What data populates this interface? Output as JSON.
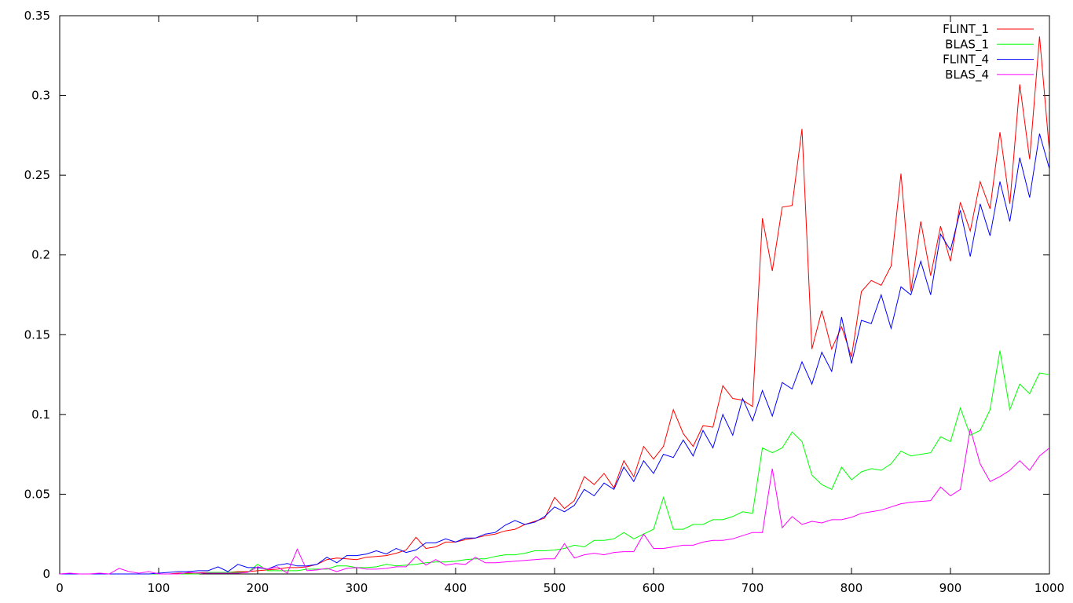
{
  "chart_data": {
    "type": "line",
    "title": "",
    "xlabel": "",
    "ylabel": "",
    "xlim": [
      0,
      1000
    ],
    "ylim": [
      0,
      0.35
    ],
    "xticks": [
      {
        "value": 0,
        "label": "0"
      },
      {
        "value": 100,
        "label": "100"
      },
      {
        "value": 200,
        "label": "200"
      },
      {
        "value": 300,
        "label": "300"
      },
      {
        "value": 400,
        "label": "400"
      },
      {
        "value": 500,
        "label": "500"
      },
      {
        "value": 600,
        "label": "600"
      },
      {
        "value": 700,
        "label": "700"
      },
      {
        "value": 800,
        "label": "800"
      },
      {
        "value": 900,
        "label": "900"
      },
      {
        "value": 1000,
        "label": "1000"
      }
    ],
    "yticks": [
      {
        "value": 0,
        "label": "0"
      },
      {
        "value": 0.05,
        "label": "0.05"
      },
      {
        "value": 0.1,
        "label": "0.1"
      },
      {
        "value": 0.15,
        "label": "0.15"
      },
      {
        "value": 0.2,
        "label": "0.2"
      },
      {
        "value": 0.25,
        "label": "0.25"
      },
      {
        "value": 0.3,
        "label": "0.3"
      },
      {
        "value": 0.35,
        "label": "0.35"
      }
    ],
    "grid": false,
    "legend_position": "top-right",
    "x": [
      0,
      10,
      20,
      30,
      40,
      50,
      60,
      70,
      80,
      90,
      100,
      110,
      120,
      130,
      140,
      150,
      160,
      170,
      180,
      190,
      200,
      210,
      220,
      230,
      240,
      250,
      260,
      270,
      280,
      290,
      300,
      310,
      320,
      330,
      340,
      350,
      360,
      370,
      380,
      390,
      400,
      410,
      420,
      430,
      440,
      450,
      460,
      470,
      480,
      490,
      500,
      510,
      520,
      530,
      540,
      550,
      560,
      570,
      580,
      590,
      600,
      610,
      620,
      630,
      640,
      650,
      660,
      670,
      680,
      690,
      700,
      710,
      720,
      730,
      740,
      750,
      760,
      770,
      780,
      790,
      800,
      810,
      820,
      830,
      840,
      850,
      860,
      870,
      880,
      890,
      900,
      910,
      920,
      930,
      940,
      950,
      960,
      970,
      980,
      990,
      1000
    ],
    "series": [
      {
        "name": "FLINT_1",
        "color": "#ff0000",
        "values": [
          0,
          0,
          0,
          0,
          0,
          0,
          0,
          0,
          0,
          0,
          0,
          0,
          0.0005,
          0.0005,
          0.0007,
          0.001,
          0.001,
          0.001,
          0.0015,
          0.0015,
          0.002,
          0.0025,
          0.003,
          0.004,
          0.004,
          0.0045,
          0.006,
          0.009,
          0.01,
          0.0095,
          0.009,
          0.0105,
          0.011,
          0.0115,
          0.013,
          0.015,
          0.023,
          0.016,
          0.017,
          0.02,
          0.02,
          0.0215,
          0.0225,
          0.024,
          0.025,
          0.027,
          0.028,
          0.031,
          0.033,
          0.035,
          0.048,
          0.041,
          0.046,
          0.061,
          0.056,
          0.063,
          0.054,
          0.071,
          0.061,
          0.08,
          0.072,
          0.08,
          0.103,
          0.088,
          0.08,
          0.093,
          0.092,
          0.118,
          0.11,
          0.109,
          0.105,
          0.223,
          0.19,
          0.23,
          0.231,
          0.279,
          0.141,
          0.165,
          0.141,
          0.155,
          0.136,
          0.177,
          0.184,
          0.181,
          0.193,
          0.251,
          0.177,
          0.221,
          0.187,
          0.218,
          0.196,
          0.233,
          0.215,
          0.246,
          0.229,
          0.277,
          0.232,
          0.307,
          0.26,
          0.337,
          0.265
        ]
      },
      {
        "name": "BLAS_1",
        "color": "#00ff00",
        "values": [
          0,
          0,
          0,
          0,
          0,
          0,
          0,
          0,
          0,
          0,
          0,
          0,
          0,
          0,
          0,
          0.001,
          0.001,
          0.001,
          0.001,
          0.001,
          0.006,
          0.002,
          0.002,
          0.002,
          0.002,
          0.003,
          0.003,
          0.003,
          0.005,
          0.005,
          0.004,
          0.004,
          0.0045,
          0.006,
          0.005,
          0.0055,
          0.006,
          0.007,
          0.0075,
          0.0075,
          0.008,
          0.009,
          0.0095,
          0.0095,
          0.011,
          0.012,
          0.012,
          0.013,
          0.0145,
          0.0145,
          0.015,
          0.016,
          0.018,
          0.017,
          0.021,
          0.021,
          0.022,
          0.026,
          0.022,
          0.025,
          0.028,
          0.048,
          0.028,
          0.028,
          0.031,
          0.031,
          0.034,
          0.034,
          0.036,
          0.039,
          0.038,
          0.079,
          0.076,
          0.079,
          0.089,
          0.083,
          0.062,
          0.056,
          0.053,
          0.067,
          0.059,
          0.064,
          0.066,
          0.065,
          0.069,
          0.077,
          0.074,
          0.075,
          0.076,
          0.086,
          0.083,
          0.104,
          0.087,
          0.09,
          0.103,
          0.14,
          0.103,
          0.119,
          0.113,
          0.126,
          0.125
        ]
      },
      {
        "name": "FLINT_4",
        "color": "#0000ff",
        "values": [
          0,
          0,
          0,
          0,
          0,
          0,
          0,
          0,
          0,
          0,
          0.0005,
          0.001,
          0.0015,
          0.0015,
          0.002,
          0.002,
          0.0045,
          0.0015,
          0.006,
          0.004,
          0.004,
          0.003,
          0.0055,
          0.0065,
          0.005,
          0.005,
          0.006,
          0.0105,
          0.007,
          0.0115,
          0.0115,
          0.0125,
          0.0145,
          0.0125,
          0.016,
          0.0135,
          0.015,
          0.0195,
          0.0195,
          0.022,
          0.02,
          0.0225,
          0.0225,
          0.025,
          0.026,
          0.0305,
          0.0335,
          0.031,
          0.0325,
          0.036,
          0.042,
          0.039,
          0.043,
          0.053,
          0.049,
          0.057,
          0.053,
          0.067,
          0.058,
          0.071,
          0.063,
          0.075,
          0.073,
          0.084,
          0.074,
          0.09,
          0.079,
          0.1,
          0.087,
          0.11,
          0.096,
          0.115,
          0.099,
          0.12,
          0.116,
          0.133,
          0.119,
          0.139,
          0.127,
          0.161,
          0.132,
          0.159,
          0.157,
          0.175,
          0.154,
          0.18,
          0.175,
          0.196,
          0.175,
          0.213,
          0.203,
          0.228,
          0.199,
          0.232,
          0.212,
          0.246,
          0.221,
          0.261,
          0.236,
          0.276,
          0.254
        ]
      },
      {
        "name": "BLAS_4",
        "color": "#ff00ff",
        "values": [
          0,
          0.0005,
          0,
          0,
          0.0005,
          0,
          0.0035,
          0.0015,
          0.0005,
          0.0015,
          0,
          0,
          0,
          0.001,
          0.0005,
          0.0005,
          0.0005,
          0.0005,
          0.0005,
          0.001,
          0.0045,
          0.003,
          0.0045,
          0.0005,
          0.0155,
          0.002,
          0.0025,
          0.0035,
          0.0015,
          0.0035,
          0.004,
          0.003,
          0.003,
          0.0035,
          0.0045,
          0.0045,
          0.011,
          0.0055,
          0.009,
          0.0055,
          0.0065,
          0.006,
          0.0105,
          0.007,
          0.007,
          0.0075,
          0.008,
          0.0085,
          0.009,
          0.0095,
          0.0095,
          0.019,
          0.01,
          0.012,
          0.013,
          0.012,
          0.0135,
          0.014,
          0.014,
          0.025,
          0.016,
          0.016,
          0.017,
          0.018,
          0.018,
          0.02,
          0.021,
          0.021,
          0.022,
          0.024,
          0.026,
          0.026,
          0.066,
          0.029,
          0.036,
          0.031,
          0.033,
          0.032,
          0.034,
          0.034,
          0.0355,
          0.038,
          0.039,
          0.04,
          0.042,
          0.044,
          0.045,
          0.0455,
          0.046,
          0.0545,
          0.049,
          0.053,
          0.091,
          0.069,
          0.058,
          0.061,
          0.065,
          0.071,
          0.065,
          0.074,
          0.079
        ]
      }
    ]
  }
}
